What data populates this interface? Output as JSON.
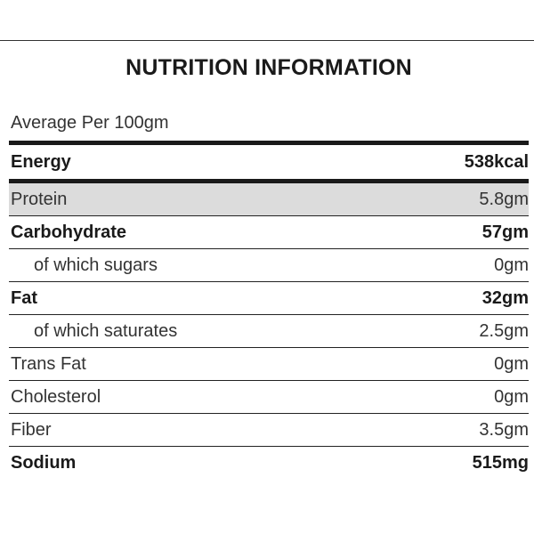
{
  "title": "NUTRITION INFORMATION",
  "subtitle": "Average Per 100gm",
  "rows": [
    {
      "label": "Energy",
      "value": "538kcal"
    },
    {
      "label": "Protein",
      "value": "5.8gm"
    },
    {
      "label": "Carbohydrate",
      "value": "57gm"
    },
    {
      "label": "of which sugars",
      "value": "0gm"
    },
    {
      "label": "Fat",
      "value": "32gm"
    },
    {
      "label": "of which saturates",
      "value": "2.5gm"
    },
    {
      "label": "Trans Fat",
      "value": "0gm"
    },
    {
      "label": "Cholesterol",
      "value": "0gm"
    },
    {
      "label": "Fiber",
      "value": "3.5gm"
    },
    {
      "label": "Sodium",
      "value": "515mg"
    }
  ],
  "colors": {
    "rule": "#1a1a1a",
    "shaded_row": "#dcdcdc"
  }
}
